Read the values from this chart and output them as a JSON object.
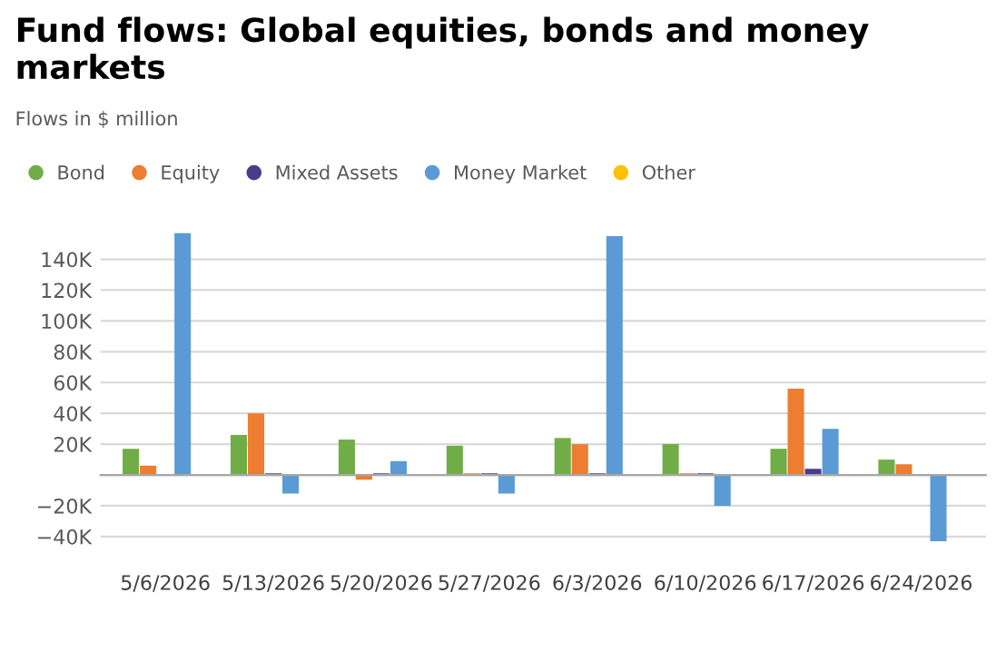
{
  "chart_data": {
    "type": "bar",
    "title": "Fund flows: Global equities, bonds and money markets",
    "subtitle": "Flows in $ million",
    "categories": [
      "5/6/2026",
      "5/13/2026",
      "5/20/2026",
      "5/27/2026",
      "6/3/2026",
      "6/10/2026",
      "6/17/2026",
      "6/24/2026"
    ],
    "series": [
      {
        "name": "Bond",
        "color": "#70ad47",
        "values": [
          17000,
          26000,
          23000,
          19000,
          24000,
          20000,
          17000,
          10000
        ]
      },
      {
        "name": "Equity",
        "color": "#ed7d31",
        "values": [
          6000,
          40000,
          -3000,
          1000,
          20000,
          1000,
          56000,
          7000
        ]
      },
      {
        "name": "Mixed Assets",
        "color": "#4a3c8c",
        "values": [
          0,
          1000,
          1000,
          1000,
          1000,
          1000,
          4000,
          0
        ]
      },
      {
        "name": "Money Market",
        "color": "#5b9bd5",
        "values": [
          157000,
          -12000,
          9000,
          -12000,
          155000,
          -20000,
          30000,
          -43000
        ]
      },
      {
        "name": "Other",
        "color": "#ffc000",
        "values": [
          0,
          0,
          0,
          0,
          0,
          0,
          0,
          0
        ]
      }
    ],
    "ylim": [
      -45000,
      160000
    ],
    "yticks": [
      {
        "value": -40000,
        "label": "−40K"
      },
      {
        "value": -20000,
        "label": "−20K"
      },
      {
        "value": 0,
        "label": null
      },
      {
        "value": 20000,
        "label": "20K"
      },
      {
        "value": 40000,
        "label": "40K"
      },
      {
        "value": 60000,
        "label": "60K"
      },
      {
        "value": 80000,
        "label": "80K"
      },
      {
        "value": 100000,
        "label": "100K"
      },
      {
        "value": 120000,
        "label": "120K"
      },
      {
        "value": 140000,
        "label": "140K"
      }
    ],
    "grid": "y",
    "legend": "top left"
  }
}
